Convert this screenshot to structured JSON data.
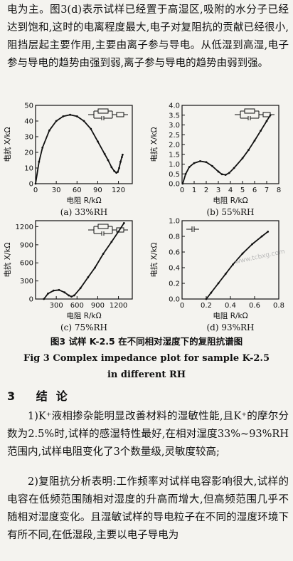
{
  "paragraphs": {
    "intro": "电为主。图3(d)表示试样已经置于高湿区,吸附的水分子已经达到饱和,这时的电离程度最大,电子对复阻抗的贡献已经很小,阻挡层起主要作用,主要由离子参与导电。从低湿到高湿,电子参与导电的趋势由强到弱,离子参与导电的趋势由弱到强。",
    "conclusion1": "1)K⁺液相掺杂能明显改善材料的湿敏性能,且K⁺的摩尔分数为2.5%时,试样的感湿特性最好,在相对湿度33%~93%RH范围内,试样电阻变化了3个数量级,灵敏度较高;",
    "conclusion2": "2)复阻抗分析表明:工作频率对试样电容影响很大,试样的电容在低频范围随相对湿度的升高而增大,但高频范围几乎不随相对湿度变化。且湿敏试样的导电粒子在不同的湿度环境下有所不同,在低湿段,主要以电子导电为"
  },
  "figure": {
    "caption_cn": "图3   试样 K-2.5 在不同相对湿度下的复阻抗谱图",
    "caption_en_line1": "Fig 3    Complex impedance plot for sample K-2.5",
    "caption_en_line2": "in different RH"
  },
  "section": {
    "title": "3 结论"
  },
  "watermark": "www.tcbxg.com",
  "axes": {
    "ylabel": "电抗 X/kΩ",
    "xlabel": "电阻 R/kΩ"
  },
  "chart_data": [
    {
      "type": "line",
      "label": "(a) 33%RH",
      "xlim": [
        0,
        140
      ],
      "ylim": [
        0,
        50
      ],
      "xticks": [
        "0",
        "30",
        "60",
        "90",
        "120"
      ],
      "yticks": [
        "0",
        "10",
        "20",
        "30",
        "40",
        "50"
      ],
      "points": [
        [
          0,
          0
        ],
        [
          5,
          14
        ],
        [
          10,
          23
        ],
        [
          20,
          34
        ],
        [
          30,
          40
        ],
        [
          40,
          43
        ],
        [
          50,
          44
        ],
        [
          60,
          43
        ],
        [
          70,
          40
        ],
        [
          80,
          35
        ],
        [
          90,
          27
        ],
        [
          100,
          19
        ],
        [
          105,
          15
        ],
        [
          110,
          10.5
        ],
        [
          114,
          8
        ],
        [
          117,
          7
        ],
        [
          119,
          7.5
        ],
        [
          121,
          10
        ],
        [
          123,
          14
        ],
        [
          125,
          17
        ],
        [
          126,
          18.5
        ]
      ]
    },
    {
      "type": "line",
      "label": "(b) 55%RH",
      "xlim": [
        0,
        8
      ],
      "ylim": [
        0,
        4.0
      ],
      "xticks": [
        "0",
        "1",
        "2",
        "3",
        "4",
        "5",
        "6",
        "7",
        "8"
      ],
      "yticks": [
        "0.0",
        "0.5",
        "1.0",
        "1.5",
        "2.0",
        "2.5",
        "3.0",
        "3.5",
        "4.0"
      ],
      "points": [
        [
          0.05,
          0
        ],
        [
          0.3,
          0.5
        ],
        [
          0.6,
          0.85
        ],
        [
          1.0,
          1.05
        ],
        [
          1.5,
          1.15
        ],
        [
          2.0,
          1.1
        ],
        [
          2.5,
          0.9
        ],
        [
          3.0,
          0.62
        ],
        [
          3.3,
          0.48
        ],
        [
          3.6,
          0.45
        ],
        [
          3.9,
          0.55
        ],
        [
          4.3,
          0.8
        ],
        [
          5.0,
          1.3
        ],
        [
          5.5,
          1.72
        ],
        [
          6.0,
          2.2
        ],
        [
          6.5,
          2.7
        ],
        [
          7.0,
          3.2
        ],
        [
          7.3,
          3.5
        ]
      ]
    },
    {
      "type": "line",
      "label": "(c) 75%RH",
      "xlim": [
        0,
        1400
      ],
      "ylim": [
        0,
        1300
      ],
      "xticks": [
        "300",
        "600",
        "900",
        "1200"
      ],
      "yticks": [
        "0",
        "300",
        "600",
        "900",
        "1200"
      ],
      "points": [
        [
          120,
          0
        ],
        [
          180,
          90
        ],
        [
          260,
          140
        ],
        [
          340,
          150
        ],
        [
          420,
          110
        ],
        [
          480,
          60
        ],
        [
          520,
          40
        ],
        [
          560,
          60
        ],
        [
          650,
          180
        ],
        [
          760,
          360
        ],
        [
          860,
          520
        ],
        [
          980,
          750
        ],
        [
          1100,
          950
        ],
        [
          1200,
          1120
        ],
        [
          1280,
          1260
        ]
      ]
    },
    {
      "type": "line",
      "label": "(d) 93%RH",
      "xlim": [
        0,
        0.8
      ],
      "ylim": [
        0,
        1.0
      ],
      "xticks": [
        "0",
        "0.2",
        "0.4",
        "0.6",
        "0.8"
      ],
      "yticks": [
        "0.0",
        "0.2",
        "0.4",
        "0.6",
        "0.8",
        "1.0"
      ],
      "points": [
        [
          0.2,
          0
        ],
        [
          0.24,
          0.08
        ],
        [
          0.3,
          0.2
        ],
        [
          0.36,
          0.32
        ],
        [
          0.42,
          0.44
        ],
        [
          0.5,
          0.58
        ],
        [
          0.58,
          0.7
        ],
        [
          0.66,
          0.8
        ],
        [
          0.71,
          0.86
        ]
      ]
    }
  ]
}
